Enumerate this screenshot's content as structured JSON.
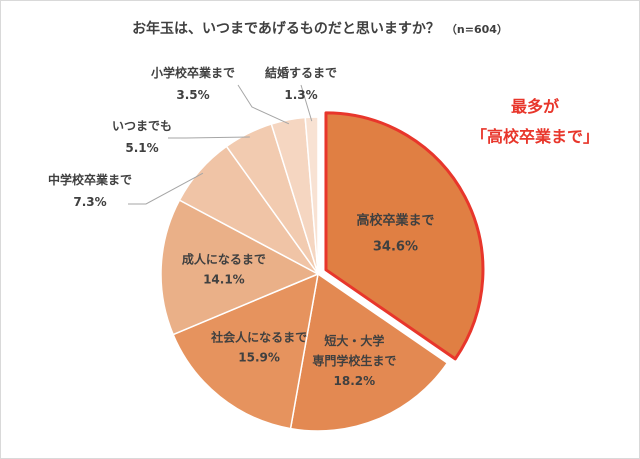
{
  "chart_data": {
    "type": "pie",
    "title": "お年玉は、いつまであげるものだと思いますか？",
    "note": "（n=604）",
    "slices": [
      {
        "label": "高校卒業まで",
        "value": 34.6,
        "value_label": "34.6%",
        "color": "#e07f43",
        "highlighted": true
      },
      {
        "label": "短大・大学専門学校生まで",
        "label_lines": [
          "短大・大学",
          "専門学校生まで"
        ],
        "value": 18.2,
        "value_label": "18.2%",
        "color": "#e38952"
      },
      {
        "label": "社会人になるまで",
        "value": 15.9,
        "value_label": "15.9%",
        "color": "#e6935e"
      },
      {
        "label": "成人になるまで",
        "value": 14.1,
        "value_label": "14.1%",
        "color": "#eab088"
      },
      {
        "label": "中学校卒業まで",
        "value": 7.3,
        "value_label": "7.3%",
        "color": "#f0c4a6"
      },
      {
        "label": "いつまでも",
        "value": 5.1,
        "value_label": "5.1%",
        "color": "#f2cbb0"
      },
      {
        "label": "小学校卒業まで",
        "value": 3.5,
        "value_label": "3.5%",
        "color": "#f5d6c1"
      },
      {
        "label": "結婚するまで",
        "value": 1.3,
        "value_label": "1.3%",
        "color": "#f8e2d3"
      }
    ],
    "highlight_color": "#e8362b",
    "callout": [
      "最多が",
      "「高校卒業まで」"
    ]
  }
}
